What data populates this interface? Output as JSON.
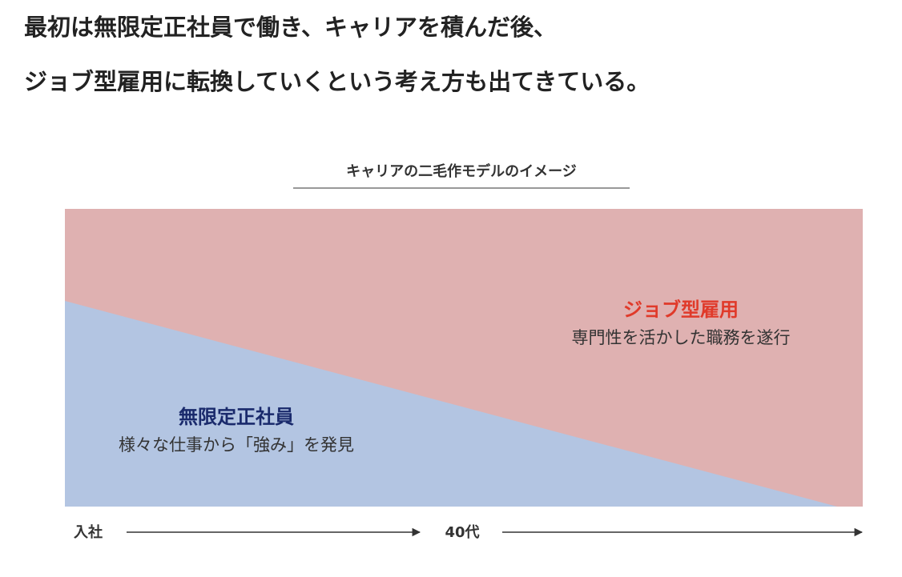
{
  "header": {
    "line1": "最初は無限定正社員で働き、キャリアを積んだ後、",
    "line2": "ジョブ型雇用に転換していくという考え方も出てきている。"
  },
  "diagram": {
    "title": "キャリアの二毛作モデルのイメージ",
    "upper_region": {
      "label": "ジョブ型雇用",
      "description": "専門性を活かした職務を遂行"
    },
    "lower_region": {
      "label": "無限定正社員",
      "description": "様々な仕事から「強み」を発見"
    },
    "timeline": {
      "start": "入社",
      "middle": "40代"
    }
  }
}
